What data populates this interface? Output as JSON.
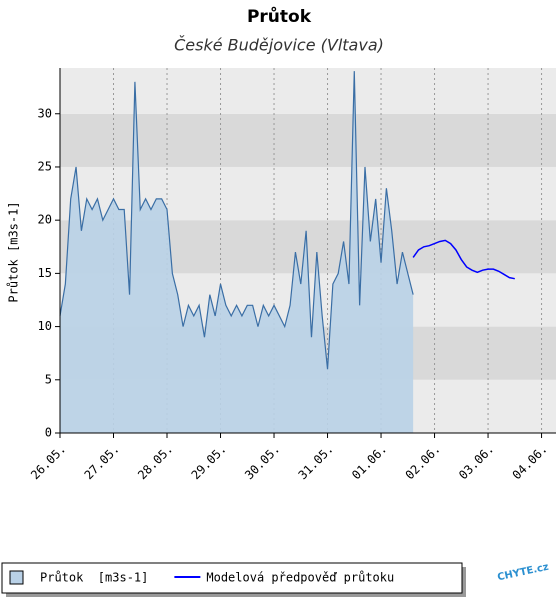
{
  "chart_data": {
    "type": "line",
    "title": "Průtok",
    "subtitle": "České Budějovice (Vltava)",
    "y_label": "Průtok [m3s-1]",
    "xlim": [
      0,
      9.27
    ],
    "ylim": [
      0,
      34.3
    ],
    "xticks": [
      {
        "value": 0,
        "label": "26.05."
      },
      {
        "value": 1,
        "label": "27.05."
      },
      {
        "value": 2,
        "label": "28.05."
      },
      {
        "value": 3,
        "label": "29.05."
      },
      {
        "value": 4,
        "label": "30.05."
      },
      {
        "value": 5,
        "label": "31.05."
      },
      {
        "value": 6,
        "label": "01.06."
      },
      {
        "value": 7,
        "label": "02.06."
      },
      {
        "value": 8,
        "label": "03.06."
      },
      {
        "value": 9,
        "label": "04.06."
      }
    ],
    "yticks": [
      0,
      5,
      10,
      15,
      20,
      25,
      30
    ],
    "band_colors": [
      "#ebebeb",
      "#d9d9d9"
    ],
    "series": [
      {
        "name": "Průtok  [m3s-1]",
        "type": "area",
        "color": "#3a6ea5",
        "fill": "#b9d1e7",
        "x": [
          0,
          0.1,
          0.2,
          0.3,
          0.4,
          0.5,
          0.6,
          0.7,
          0.8,
          0.9,
          1,
          1.1,
          1.2,
          1.3,
          1.4,
          1.5,
          1.6,
          1.7,
          1.8,
          1.9,
          2,
          2.1,
          2.2,
          2.3,
          2.4,
          2.5,
          2.6,
          2.7,
          2.8,
          2.9,
          3,
          3.1,
          3.2,
          3.3,
          3.4,
          3.5,
          3.6,
          3.7,
          3.8,
          3.9,
          4,
          4.1,
          4.2,
          4.3,
          4.4,
          4.5,
          4.6,
          4.7,
          4.8,
          4.9,
          5,
          5.1,
          5.2,
          5.3,
          5.4,
          5.5,
          5.6,
          5.7,
          5.8,
          5.9,
          6,
          6.1,
          6.2,
          6.3,
          6.4,
          6.5,
          6.6
        ],
        "values": [
          11,
          14,
          22,
          25,
          19,
          22,
          21,
          22,
          20,
          21,
          22,
          21,
          21,
          13,
          33,
          21,
          22,
          21,
          22,
          22,
          21,
          15,
          13,
          10,
          12,
          11,
          12,
          9,
          13,
          11,
          14,
          12,
          11,
          12,
          11,
          12,
          12,
          10,
          12,
          11,
          12,
          11,
          10,
          12,
          17,
          14,
          19,
          9,
          17,
          11,
          6,
          14,
          15,
          18,
          14,
          34,
          12,
          25,
          18,
          22,
          16,
          23,
          19,
          14,
          17,
          15,
          13
        ]
      },
      {
        "name": "Modelová předpověď průtoku",
        "type": "line",
        "color": "#0000ff",
        "x": [
          6.6,
          6.7,
          6.8,
          6.9,
          7,
          7.1,
          7.2,
          7.3,
          7.4,
          7.5,
          7.6,
          7.7,
          7.8,
          7.9,
          8,
          8.1,
          8.2,
          8.3,
          8.4,
          8.5
        ],
        "values": [
          16.5,
          17.2,
          17.5,
          17.6,
          17.8,
          18,
          18.1,
          17.8,
          17.2,
          16.3,
          15.6,
          15.3,
          15.1,
          15.3,
          15.4,
          15.4,
          15.2,
          14.9,
          14.6,
          14.5
        ]
      }
    ],
    "logo": "CHYTE.cz"
  }
}
